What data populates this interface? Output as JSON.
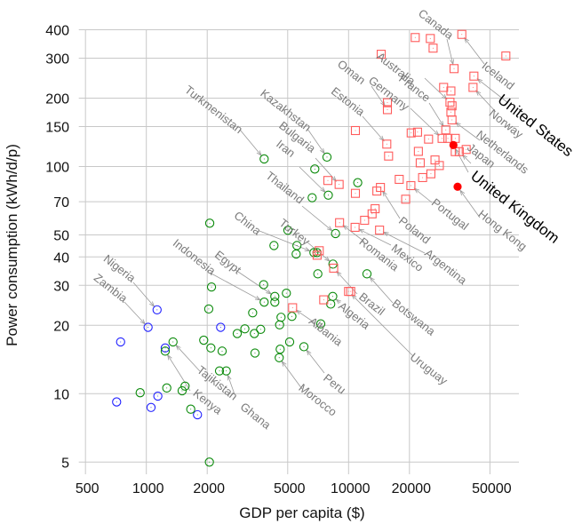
{
  "chart_data": {
    "type": "scatter",
    "title": "",
    "xlabel": "GDP per capita ($)",
    "ylabel": "Power consumption (kWh/d/p)",
    "xscale": "log",
    "yscale": "log",
    "xlim": [
      480,
      68000
    ],
    "ylim": [
      4.7,
      420
    ],
    "xticks": [
      500,
      1000,
      2000,
      5000,
      10000,
      20000,
      50000
    ],
    "yticks": [
      5,
      10,
      20,
      30,
      40,
      50,
      70,
      100,
      150,
      200,
      300,
      400
    ],
    "grid": true,
    "colors": {
      "blue": "#2020ff",
      "green": "#0a8a0a",
      "red": "#ff5c5c",
      "highlight": "#ff0000",
      "label": "#7a7a7a"
    },
    "series": [
      {
        "marker": "circle",
        "color": "blue",
        "points": [
          {
            "x": 1130,
            "y": 23.4,
            "label": "Nigeria"
          },
          {
            "x": 1020,
            "y": 19.6,
            "label": "Zambia"
          },
          {
            "x": 746,
            "y": 16.9
          },
          {
            "x": 1240,
            "y": 15.9
          },
          {
            "x": 713,
            "y": 9.2
          },
          {
            "x": 1140,
            "y": 9.76
          },
          {
            "x": 1055,
            "y": 8.7
          },
          {
            "x": 1790,
            "y": 8.08
          },
          {
            "x": 2330,
            "y": 19.6
          }
        ]
      },
      {
        "marker": "circle",
        "color": "green",
        "points": [
          {
            "x": 1355,
            "y": 16.9,
            "label": "Tajikistan"
          },
          {
            "x": 1240,
            "y": 15.4,
            "label": "Kenya"
          },
          {
            "x": 932,
            "y": 10.1
          },
          {
            "x": 1262,
            "y": 10.6
          },
          {
            "x": 1503,
            "y": 10.3
          },
          {
            "x": 1554,
            "y": 10.8
          },
          {
            "x": 1658,
            "y": 8.55
          },
          {
            "x": 2100,
            "y": 29.5
          },
          {
            "x": 2035,
            "y": 23.6
          },
          {
            "x": 1922,
            "y": 17.2
          },
          {
            "x": 2085,
            "y": 15.9
          },
          {
            "x": 2370,
            "y": 15.4
          },
          {
            "x": 2300,
            "y": 12.6
          },
          {
            "x": 2485,
            "y": 12.6,
            "label": "Ghana"
          },
          {
            "x": 2050,
            "y": 5.0
          },
          {
            "x": 2815,
            "y": 18.4
          },
          {
            "x": 3070,
            "y": 19.3
          },
          {
            "x": 3355,
            "y": 22.7
          },
          {
            "x": 3420,
            "y": 18.4
          },
          {
            "x": 3674,
            "y": 19.2
          },
          {
            "x": 3802,
            "y": 30.2
          },
          {
            "x": 3825,
            "y": 25.3,
            "label": "Indonesia"
          },
          {
            "x": 3445,
            "y": 15.1
          },
          {
            "x": 4318,
            "y": 26.8,
            "label": "Egypt"
          },
          {
            "x": 4318,
            "y": 25.3
          },
          {
            "x": 4925,
            "y": 27.7
          },
          {
            "x": 4635,
            "y": 21.7
          },
          {
            "x": 4560,
            "y": 20.1
          },
          {
            "x": 4590,
            "y": 15.7
          },
          {
            "x": 4540,
            "y": 14.4,
            "label": "Morocco"
          },
          {
            "x": 5113,
            "y": 16.9
          },
          {
            "x": 5245,
            "y": 21.9
          },
          {
            "x": 6013,
            "y": 16.1,
            "label": "Peru"
          },
          {
            "x": 5506,
            "y": 41.2
          },
          {
            "x": 6741,
            "y": 41.8,
            "label": "China"
          },
          {
            "x": 6980,
            "y": 41.8
          },
          {
            "x": 7046,
            "y": 33.7
          },
          {
            "x": 8370,
            "y": 37.2,
            "label": "Turkey"
          },
          {
            "x": 8350,
            "y": 26.8,
            "label": "Algeria"
          },
          {
            "x": 8160,
            "y": 24.8
          },
          {
            "x": 7286,
            "y": 20.3
          },
          {
            "x": 12330,
            "y": 33.7,
            "label": "Botswana"
          },
          {
            "x": 3825,
            "y": 108,
            "label": "Turkmenistan"
          },
          {
            "x": 7820,
            "y": 110,
            "label": "Kazakhstan"
          },
          {
            "x": 6808,
            "y": 97.5
          },
          {
            "x": 7940,
            "y": 74.8,
            "label": "Iran"
          },
          {
            "x": 6605,
            "y": 72.9
          },
          {
            "x": 2058,
            "y": 56.3
          },
          {
            "x": 8620,
            "y": 50.7,
            "label": "Thailand"
          },
          {
            "x": 5010,
            "y": 52.4
          },
          {
            "x": 4276,
            "y": 44.9
          },
          {
            "x": 5555,
            "y": 44.9
          },
          {
            "x": 11100,
            "y": 84.9
          }
        ]
      },
      {
        "marker": "square",
        "color": "red",
        "points": [
          {
            "x": 5287,
            "y": 23.9,
            "label": "Albania"
          },
          {
            "x": 7534,
            "y": 25.9
          },
          {
            "x": 8440,
            "y": 35.7,
            "label": "Brazil"
          },
          {
            "x": 6990,
            "y": 40.7
          },
          {
            "x": 7160,
            "y": 42.6
          },
          {
            "x": 10000,
            "y": 28.2,
            "label": "Uruguay"
          },
          {
            "x": 10250,
            "y": 28.2
          },
          {
            "x": 8980,
            "y": 83.4,
            "label": "Bulgaria"
          },
          {
            "x": 7900,
            "y": 86.8
          },
          {
            "x": 9024,
            "y": 56.6,
            "label": "Romania"
          },
          {
            "x": 21360,
            "y": 369.6
          },
          {
            "x": 25360,
            "y": 366
          },
          {
            "x": 26180,
            "y": 332
          },
          {
            "x": 36300,
            "y": 381.6,
            "label": "Iceland"
          },
          {
            "x": 33230,
            "y": 269.7,
            "label": "Canada"
          },
          {
            "x": 59940,
            "y": 306.7
          },
          {
            "x": 14500,
            "y": 312
          },
          {
            "x": 41660,
            "y": 250,
            "label": "United States"
          },
          {
            "x": 41250,
            "y": 223,
            "label": "Norway"
          },
          {
            "x": 29510,
            "y": 223
          },
          {
            "x": 32060,
            "y": 215
          },
          {
            "x": 15560,
            "y": 190.9
          },
          {
            "x": 15560,
            "y": 178,
            "label": "Oman"
          },
          {
            "x": 31720,
            "y": 192,
            "label": "Australia"
          },
          {
            "x": 32470,
            "y": 185
          },
          {
            "x": 32060,
            "y": 173.5
          },
          {
            "x": 32470,
            "y": 160.4,
            "label": "Netherlands"
          },
          {
            "x": 10810,
            "y": 144
          },
          {
            "x": 20400,
            "y": 140.6
          },
          {
            "x": 21930,
            "y": 141.7
          },
          {
            "x": 30250,
            "y": 145,
            "label": "France"
          },
          {
            "x": 24860,
            "y": 132
          },
          {
            "x": 29000,
            "y": 133,
            "label": "Germany"
          },
          {
            "x": 30980,
            "y": 133
          },
          {
            "x": 33690,
            "y": 133
          },
          {
            "x": 15450,
            "y": 125.5,
            "label": "Estonia"
          },
          {
            "x": 15770,
            "y": 111.2
          },
          {
            "x": 35270,
            "y": 116.3,
            "label": "Japan"
          },
          {
            "x": 33690,
            "y": 116.3
          },
          {
            "x": 38160,
            "y": 118.9
          },
          {
            "x": 22140,
            "y": 116.6
          },
          {
            "x": 22610,
            "y": 103.8
          },
          {
            "x": 26750,
            "y": 106.9
          },
          {
            "x": 28110,
            "y": 101
          },
          {
            "x": 17800,
            "y": 87.8
          },
          {
            "x": 23230,
            "y": 89.4
          },
          {
            "x": 25530,
            "y": 92.9
          },
          {
            "x": 20330,
            "y": 82.4,
            "label": "Portugal"
          },
          {
            "x": 19160,
            "y": 71.8
          },
          {
            "x": 14370,
            "y": 80.9,
            "label": "Poland"
          },
          {
            "x": 13800,
            "y": 78
          },
          {
            "x": 10810,
            "y": 76.2
          },
          {
            "x": 13530,
            "y": 65.2
          },
          {
            "x": 13070,
            "y": 61.9
          },
          {
            "x": 12000,
            "y": 58
          },
          {
            "x": 10770,
            "y": 54,
            "label": "Mexico"
          },
          {
            "x": 14230,
            "y": 52.5,
            "label": "Argentina"
          }
        ]
      },
      {
        "marker": "filled-circle",
        "color": "highlight",
        "points": [
          {
            "x": 33000,
            "y": 124.3,
            "label": "United Kingdom"
          },
          {
            "x": 34600,
            "y": 81.5,
            "label": "Hong Kong"
          }
        ]
      }
    ],
    "emphasized_labels": [
      "United Kingdom",
      "United States"
    ]
  }
}
